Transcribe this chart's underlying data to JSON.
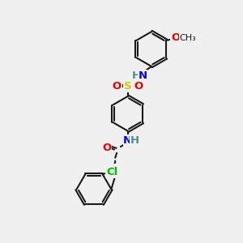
{
  "bg": "#f0f0f0",
  "bond_lw": 1.5,
  "bond_color": "#1a1a1a",
  "double_sep": 3.0,
  "colors": {
    "N": "#0000ee",
    "O": "#ee0000",
    "S": "#cccc00",
    "Cl": "#00bb00",
    "C": "#1a1a1a",
    "H": "#4a9090"
  },
  "fs": 9.5,
  "fs_small": 8.0
}
